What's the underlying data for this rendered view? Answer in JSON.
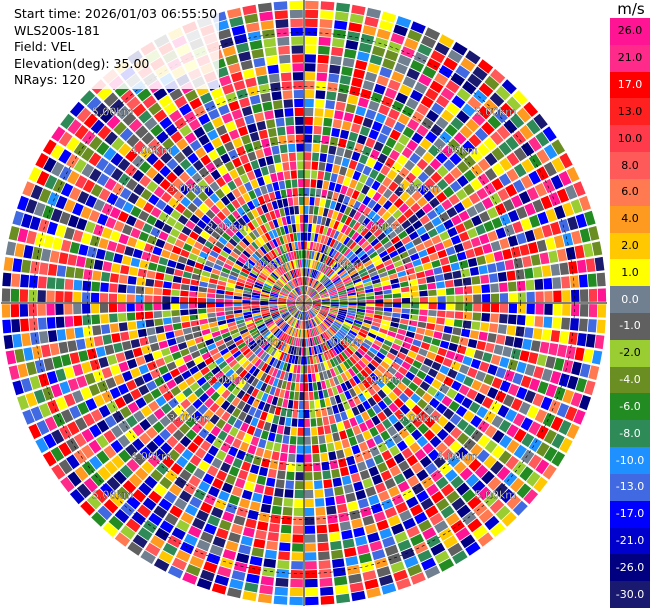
{
  "header": {
    "start_time": "Start time: 2026/01/03 06:55:50",
    "instrument": "WLS200s-181",
    "field": "Field: VEL",
    "elevation": "Elevation(deg): 35.00",
    "nrays": "NRays: 120"
  },
  "chart_data": {
    "type": "heatmap",
    "projection": "polar PPI",
    "field": "VEL",
    "n_rays": 120,
    "range_rings": [
      "1.00km",
      "2.00km",
      "3.00km",
      "4.00km",
      "5.00km"
    ],
    "range_rings_km": [
      1,
      2,
      3,
      4,
      5
    ],
    "colorbar": {
      "unit": "m/s",
      "ticks": [
        "26.0",
        "21.0",
        "17.0",
        "13.0",
        "10.0",
        "8.0",
        "6.0",
        "4.0",
        "2.0",
        "1.0",
        "0.0",
        "-1.0",
        "-2.0",
        "-4.0",
        "-6.0",
        "-8.0",
        "-10.0",
        "-13.0",
        "-17.0",
        "-21.0",
        "-26.0",
        "-30.0"
      ],
      "colors": [
        "#ff1493",
        "#ff2a8a",
        "#ff0000",
        "#ff2020",
        "#ff3a4a",
        "#ff5a5a",
        "#ff7a50",
        "#ff9a20",
        "#ffc800",
        "#ffff00",
        "#708090",
        "#606060",
        "#9acd32",
        "#6b8e23",
        "#228b22",
        "#2e8b57",
        "#1e90ff",
        "#4169e1",
        "#0000ff",
        "#0000cd",
        "#000080",
        "#191970"
      ]
    }
  }
}
